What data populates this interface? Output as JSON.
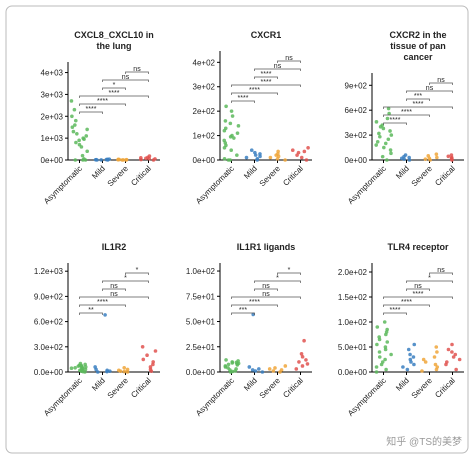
{
  "chart_data": [
    {
      "type": "strip",
      "title_lines": [
        "CXCL8_CXCL10 in",
        "the lung"
      ],
      "categories": [
        "Asymptomatic",
        "Mild",
        "Severe",
        "Critical"
      ],
      "colors": [
        "#5cb85c",
        "#3a7fc1",
        "#f0a63a",
        "#e0524f"
      ],
      "values": [
        [
          2700,
          2300,
          2000,
          1800,
          1600,
          1500,
          1400,
          1300,
          1200,
          1100,
          1000,
          950,
          900,
          800,
          700,
          600,
          400,
          200,
          50,
          0,
          0,
          0
        ],
        [
          40,
          20,
          10,
          5,
          0,
          0,
          30,
          15
        ],
        [
          30,
          15,
          5,
          0,
          0,
          20,
          10
        ],
        [
          180,
          120,
          80,
          50,
          20,
          0,
          100,
          60
        ]
      ],
      "ylim": [
        0,
        4300
      ],
      "yticks": [
        {
          "value": 0,
          "label": "0e+00"
        },
        {
          "value": 1000,
          "label": "1e+03"
        },
        {
          "value": 2000,
          "label": "2e+03"
        },
        {
          "value": 3000,
          "label": "3e+03"
        },
        {
          "value": 4000,
          "label": "4e+03"
        }
      ],
      "comparisons": [
        {
          "groups": [
            0,
            1
          ],
          "label": "****"
        },
        {
          "groups": [
            0,
            2
          ],
          "label": "****"
        },
        {
          "groups": [
            0,
            3
          ],
          "label": "****"
        },
        {
          "groups": [
            1,
            2
          ],
          "label": "*"
        },
        {
          "groups": [
            1,
            3
          ],
          "label": "ns"
        },
        {
          "groups": [
            2,
            3
          ],
          "label": "ns"
        }
      ]
    },
    {
      "type": "strip",
      "title_lines": [
        "CXCR1"
      ],
      "categories": [
        "Asymptomatic",
        "Mild",
        "Severe",
        "Critical"
      ],
      "colors": [
        "#5cb85c",
        "#3a7fc1",
        "#f0a63a",
        "#e0524f"
      ],
      "values": [
        [
          220,
          200,
          180,
          160,
          150,
          140,
          130,
          120,
          110,
          100,
          95,
          90,
          80,
          70,
          60,
          50,
          40,
          20,
          5,
          0,
          0
        ],
        [
          40,
          30,
          20,
          15,
          10,
          5,
          0,
          25
        ],
        [
          35,
          25,
          15,
          10,
          5,
          0,
          20
        ],
        [
          50,
          40,
          30,
          20,
          10,
          0,
          35
        ]
      ],
      "ylim": [
        0,
        430
      ],
      "yticks": [
        {
          "value": 0,
          "label": "0e+00"
        },
        {
          "value": 100,
          "label": "1e+02"
        },
        {
          "value": 200,
          "label": "2e+02"
        },
        {
          "value": 300,
          "label": "3e+02"
        },
        {
          "value": 400,
          "label": "4e+02"
        }
      ],
      "comparisons": [
        {
          "groups": [
            0,
            1
          ],
          "label": "****"
        },
        {
          "groups": [
            0,
            2
          ],
          "label": "****"
        },
        {
          "groups": [
            0,
            3
          ],
          "label": "****"
        },
        {
          "groups": [
            1,
            2
          ],
          "label": "****"
        },
        {
          "groups": [
            1,
            3
          ],
          "label": "ns"
        },
        {
          "groups": [
            2,
            3
          ],
          "label": "ns"
        }
      ]
    },
    {
      "type": "strip",
      "title_lines": [
        "CXCR2 in the",
        "tissue of pan",
        "cancer"
      ],
      "categories": [
        "Asymptomatic",
        "Mild",
        "Severe",
        "Critical"
      ],
      "colors": [
        "#5cb85c",
        "#3a7fc1",
        "#f0a63a",
        "#e0524f"
      ],
      "values": [
        [
          620,
          560,
          500,
          460,
          420,
          400,
          380,
          350,
          320,
          300,
          280,
          250,
          220,
          200,
          180,
          150,
          120,
          80,
          40,
          0
        ],
        [
          60,
          40,
          30,
          20,
          10,
          0
        ],
        [
          70,
          50,
          30,
          20,
          10,
          0
        ],
        [
          60,
          45,
          30,
          20,
          10,
          0
        ]
      ],
      "ylim": [
        0,
        1000
      ],
      "yticks": [
        {
          "value": 0,
          "label": "0e+00"
        },
        {
          "value": 300,
          "label": "3e+02"
        },
        {
          "value": 600,
          "label": "6e+02"
        },
        {
          "value": 900,
          "label": "9e+02"
        }
      ],
      "comparisons": [
        {
          "groups": [
            0,
            1
          ],
          "label": "****"
        },
        {
          "groups": [
            0,
            2
          ],
          "label": "****"
        },
        {
          "groups": [
            0,
            3
          ],
          "label": "****"
        },
        {
          "groups": [
            1,
            2
          ],
          "label": "***"
        },
        {
          "groups": [
            1,
            3
          ],
          "label": "ns"
        },
        {
          "groups": [
            2,
            3
          ],
          "label": "ns"
        }
      ]
    },
    {
      "type": "strip",
      "title_lines": [
        "IL1R2"
      ],
      "categories": [
        "Asymptomatic",
        "Mild",
        "Severe",
        "Critical"
      ],
      "colors": [
        "#5cb85c",
        "#3a7fc1",
        "#f0a63a",
        "#e0524f"
      ],
      "values": [
        [
          100,
          90,
          80,
          75,
          70,
          65,
          60,
          55,
          50,
          45,
          40,
          35,
          30,
          25,
          20,
          10,
          5,
          0
        ],
        [
          680,
          60,
          30,
          20,
          10,
          5,
          0
        ],
        [
          50,
          30,
          20,
          10,
          5,
          0
        ],
        [
          300,
          250,
          200,
          150,
          120,
          90,
          60,
          30,
          10
        ]
      ],
      "ylim": [
        0,
        1250
      ],
      "yticks": [
        {
          "value": 0,
          "label": "0.0e+00"
        },
        {
          "value": 300,
          "label": "3.0e+02"
        },
        {
          "value": 600,
          "label": "6.0e+02"
        },
        {
          "value": 900,
          "label": "9.0e+02"
        },
        {
          "value": 1200,
          "label": "1.2e+03"
        }
      ],
      "comparisons": [
        {
          "groups": [
            0,
            1
          ],
          "label": "**"
        },
        {
          "groups": [
            0,
            2
          ],
          "label": "****"
        },
        {
          "groups": [
            0,
            3
          ],
          "label": "ns"
        },
        {
          "groups": [
            1,
            2
          ],
          "label": "ns"
        },
        {
          "groups": [
            1,
            3
          ],
          "label": "*"
        },
        {
          "groups": [
            2,
            3
          ],
          "label": "*"
        }
      ]
    },
    {
      "type": "strip",
      "title_lines": [
        "IL1R1 ligands"
      ],
      "categories": [
        "Asymptomatic",
        "Mild",
        "Severe",
        "Critical"
      ],
      "colors": [
        "#5cb85c",
        "#3a7fc1",
        "#f0a63a",
        "#e0524f"
      ],
      "values": [
        [
          12,
          11,
          10,
          9.5,
          9,
          8.5,
          8,
          7.5,
          7,
          6,
          5,
          4,
          3,
          2,
          1,
          0.5,
          0
        ],
        [
          57,
          5,
          3,
          2,
          1,
          0
        ],
        [
          6,
          4,
          3,
          2,
          1,
          0
        ],
        [
          31,
          18,
          15,
          12,
          10,
          8,
          6,
          3
        ]
      ],
      "ylim": [
        0,
        104
      ],
      "yticks": [
        {
          "value": 0,
          "label": "0.0e+00"
        },
        {
          "value": 25,
          "label": "2.5e+01"
        },
        {
          "value": 50,
          "label": "5.0e+01"
        },
        {
          "value": 75,
          "label": "7.5e+01"
        },
        {
          "value": 100,
          "label": "1.0e+02"
        }
      ],
      "comparisons": [
        {
          "groups": [
            0,
            1
          ],
          "label": "***"
        },
        {
          "groups": [
            0,
            2
          ],
          "label": "****"
        },
        {
          "groups": [
            0,
            3
          ],
          "label": "ns"
        },
        {
          "groups": [
            1,
            2
          ],
          "label": "ns"
        },
        {
          "groups": [
            1,
            3
          ],
          "label": "*"
        },
        {
          "groups": [
            2,
            3
          ],
          "label": "*"
        }
      ]
    },
    {
      "type": "strip",
      "title_lines": [
        "TLR4 receptor"
      ],
      "categories": [
        "Asymptomatic",
        "Mild",
        "Severe",
        "Critical"
      ],
      "colors": [
        "#5cb85c",
        "#3a7fc1",
        "#f0a63a",
        "#e0524f"
      ],
      "values": [
        [
          100,
          90,
          85,
          80,
          75,
          70,
          65,
          60,
          55,
          50,
          45,
          40,
          35,
          30,
          25,
          20,
          15,
          10,
          5,
          0
        ],
        [
          55,
          45,
          35,
          30,
          25,
          20,
          15,
          10,
          5
        ],
        [
          50,
          40,
          30,
          25,
          20,
          15,
          10,
          5,
          2
        ],
        [
          55,
          45,
          40,
          35,
          30,
          25,
          20,
          15,
          5
        ]
      ],
      "ylim": [
        0,
        210
      ],
      "yticks": [
        {
          "value": 0,
          "label": "0.0e+00"
        },
        {
          "value": 50,
          "label": "5.0e+01"
        },
        {
          "value": 100,
          "label": "1.0e+02"
        },
        {
          "value": 150,
          "label": "1.5e+02"
        },
        {
          "value": 200,
          "label": "2.0e+02"
        }
      ],
      "comparisons": [
        {
          "groups": [
            0,
            1
          ],
          "label": "****"
        },
        {
          "groups": [
            0,
            2
          ],
          "label": "****"
        },
        {
          "groups": [
            0,
            3
          ],
          "label": "****"
        },
        {
          "groups": [
            1,
            2
          ],
          "label": "ns"
        },
        {
          "groups": [
            1,
            3
          ],
          "label": "*"
        },
        {
          "groups": [
            2,
            3
          ],
          "label": "ns"
        }
      ]
    }
  ],
  "watermark": "知乎 @TS的美梦"
}
